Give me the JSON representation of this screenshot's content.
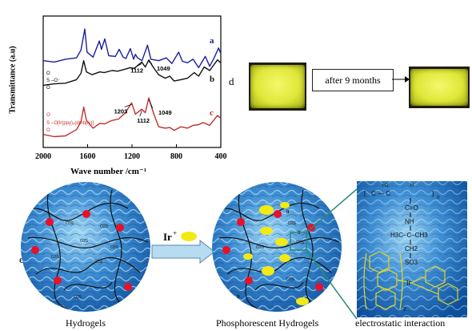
{
  "panel_d": {
    "letter": "d",
    "arrow_label": "after 9 months"
  },
  "panel_e": {
    "letter": "e",
    "ir_label": "Ir",
    "ir_sup": "+",
    "caption_left": "Hydrogels",
    "caption_mid": "Phosphorescent Hydrogels",
    "caption_right": "electrostatic interaction",
    "so3_label": "O3S",
    "ir_labels": [
      "Ir",
      "Ir",
      "Ir"
    ],
    "structure": {
      "h2": "H2",
      "h": "H",
      "n": "n",
      "co": "C=O",
      "nh": "NH",
      "cm": "H3C–C–CH3",
      "ch2": "CH2",
      "so3": "SO3",
      "ir": "Ir",
      "sub2": "2"
    }
  },
  "chart_data": {
    "type": "line",
    "title": "",
    "xlabel": "Wave number /cm⁻¹",
    "ylabel": "Transmittance (a.u)",
    "xlim": [
      2000,
      400
    ],
    "x_ticks": [
      2000,
      1600,
      1200,
      800,
      400
    ],
    "x_tick_labels": [
      "2000",
      "1600",
      "1200",
      "800",
      "400"
    ],
    "series": [
      {
        "name": "a",
        "color": "#1b1f9a",
        "points": [
          [
            2000,
            6
          ],
          [
            1900,
            6.2
          ],
          [
            1800,
            5.8
          ],
          [
            1700,
            5.6
          ],
          [
            1660,
            4.5
          ],
          [
            1625,
            1.5
          ],
          [
            1605,
            4.8
          ],
          [
            1550,
            5.5
          ],
          [
            1495,
            3.2
          ],
          [
            1475,
            4.4
          ],
          [
            1445,
            2.9
          ],
          [
            1410,
            5.3
          ],
          [
            1350,
            5.4
          ],
          [
            1315,
            4.4
          ],
          [
            1280,
            5.5
          ],
          [
            1255,
            5.7
          ],
          [
            1215,
            4.3
          ],
          [
            1185,
            5.8
          ],
          [
            1170,
            5.1
          ],
          [
            1150,
            5.6
          ],
          [
            1110,
            6.0
          ],
          [
            1060,
            3.8
          ],
          [
            1030,
            5.8
          ],
          [
            960,
            6.0
          ],
          [
            890,
            5.6
          ],
          [
            840,
            6.4
          ],
          [
            780,
            4.8
          ],
          [
            745,
            6.1
          ],
          [
            700,
            6.3
          ],
          [
            650,
            5.8
          ],
          [
            600,
            7.0
          ],
          [
            540,
            5.4
          ],
          [
            500,
            6.8
          ],
          [
            460,
            5.6
          ],
          [
            420,
            4.2
          ],
          [
            400,
            5.0
          ]
        ]
      },
      {
        "name": "b",
        "color": "#111111",
        "points": [
          [
            2000,
            9.5
          ],
          [
            1900,
            9.3
          ],
          [
            1800,
            9.2
          ],
          [
            1700,
            8.7
          ],
          [
            1660,
            7.8
          ],
          [
            1635,
            6.0
          ],
          [
            1610,
            7.6
          ],
          [
            1560,
            8.0
          ],
          [
            1490,
            7.6
          ],
          [
            1450,
            7.7
          ],
          [
            1380,
            7.4
          ],
          [
            1330,
            7.5
          ],
          [
            1260,
            7.2
          ],
          [
            1215,
            7.0
          ],
          [
            1180,
            7.1
          ],
          [
            1112,
            6.2
          ],
          [
            1080,
            6.9
          ],
          [
            1049,
            5.9
          ],
          [
            1010,
            6.9
          ],
          [
            960,
            8.0
          ],
          [
            900,
            8.5
          ],
          [
            860,
            8.2
          ],
          [
            820,
            8.9
          ],
          [
            760,
            8.7
          ],
          [
            700,
            8.5
          ],
          [
            640,
            7.7
          ],
          [
            600,
            8.2
          ],
          [
            550,
            6.9
          ],
          [
            500,
            7.4
          ],
          [
            430,
            5.9
          ],
          [
            400,
            6.3
          ]
        ]
      },
      {
        "name": "c",
        "color": "#c0302d",
        "points": [
          [
            2000,
            16.5
          ],
          [
            1900,
            16.8
          ],
          [
            1800,
            16.7
          ],
          [
            1700,
            15.8
          ],
          [
            1660,
            14.7
          ],
          [
            1635,
            12.6
          ],
          [
            1610,
            14.5
          ],
          [
            1550,
            15.6
          ],
          [
            1490,
            14.9
          ],
          [
            1450,
            15.0
          ],
          [
            1380,
            14.5
          ],
          [
            1320,
            14.3
          ],
          [
            1260,
            13.4
          ],
          [
            1203,
            12.0
          ],
          [
            1170,
            13.6
          ],
          [
            1112,
            12.9
          ],
          [
            1080,
            13.4
          ],
          [
            1049,
            11.3
          ],
          [
            1010,
            13.3
          ],
          [
            960,
            15.4
          ],
          [
            900,
            15.6
          ],
          [
            860,
            15.5
          ],
          [
            820,
            15.9
          ],
          [
            760,
            15.4
          ],
          [
            700,
            15.6
          ],
          [
            650,
            15.2
          ],
          [
            600,
            15.1
          ],
          [
            560,
            14.8
          ],
          [
            500,
            15.2
          ],
          [
            430,
            13.8
          ],
          [
            400,
            14.2
          ]
        ]
      }
    ],
    "annotations": [
      {
        "text": "1112",
        "x": 1112,
        "series": "b"
      },
      {
        "text": "1049",
        "x": 1049,
        "series": "b"
      },
      {
        "text": "1203",
        "x": 1203,
        "series": "c"
      },
      {
        "text": "1112",
        "x": 1112,
        "series": "c"
      },
      {
        "text": "1049",
        "x": 1049,
        "series": "c"
      }
    ],
    "inset_labels": {
      "b": "O=S(=O)–O⁻",
      "c": "O=S(=O)–O[Ir(ppy)2(dmbpy)]"
    }
  }
}
